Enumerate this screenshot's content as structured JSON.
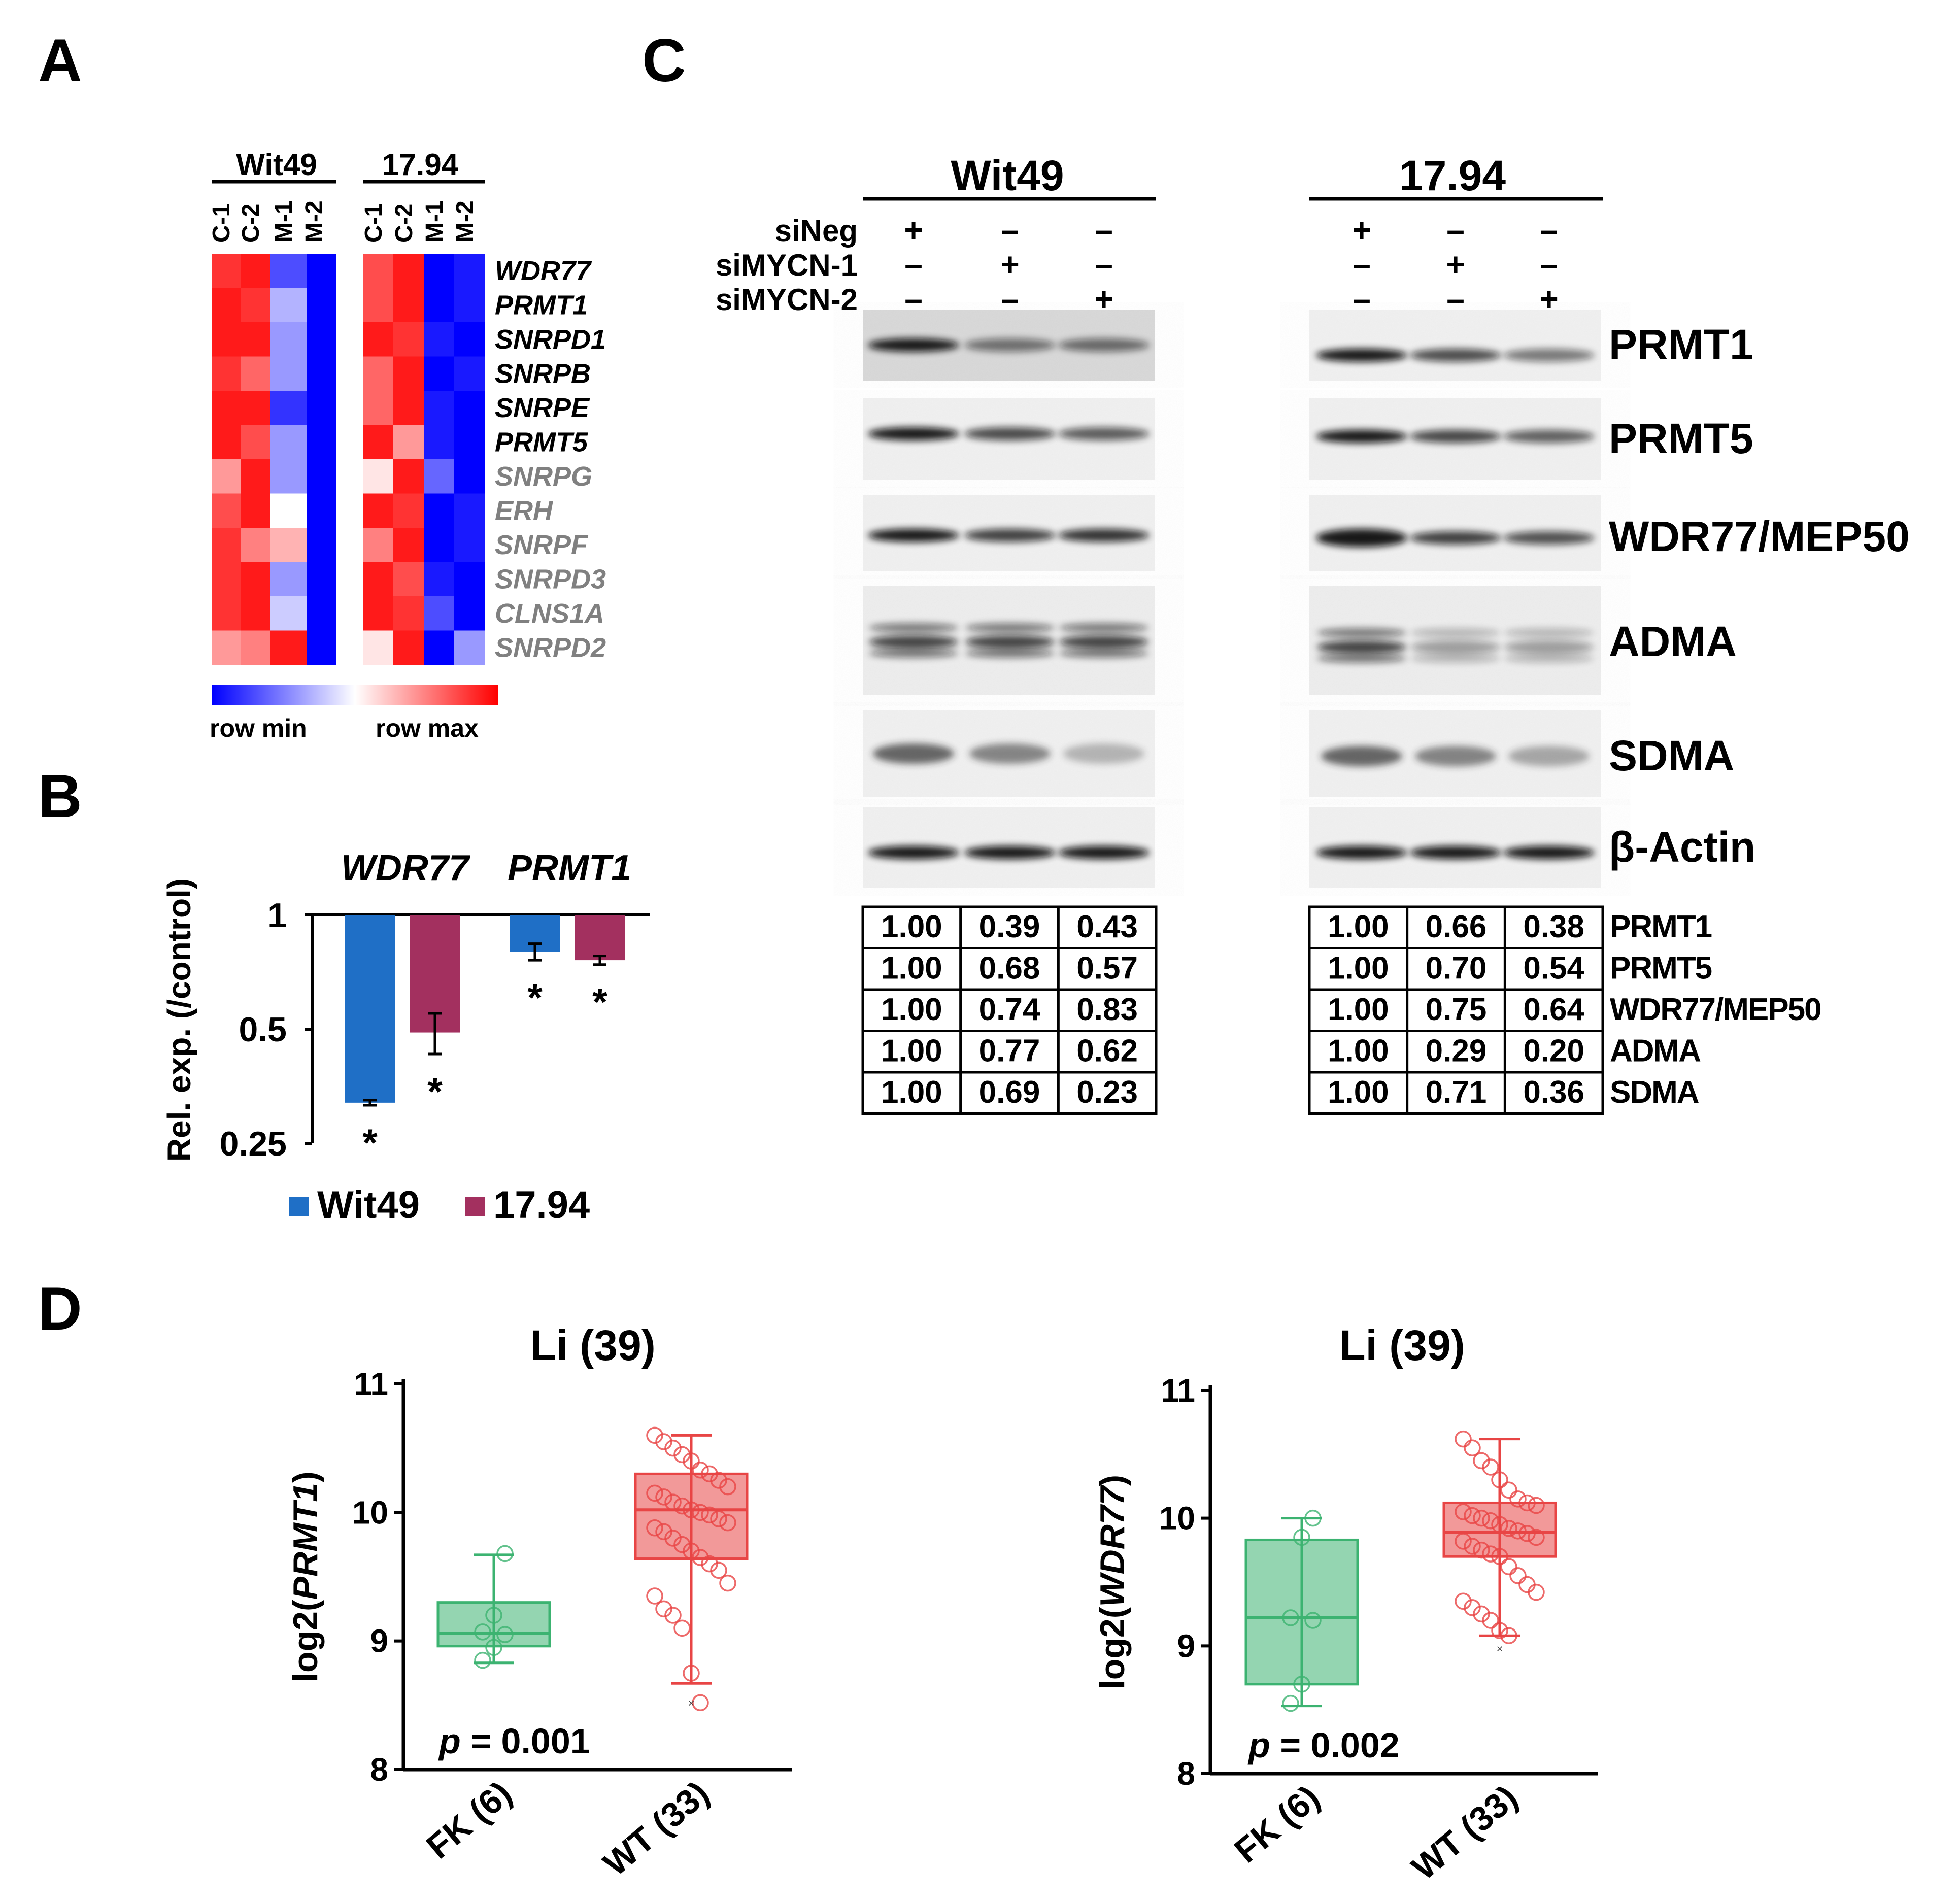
{
  "panel_labels": {
    "a": "A",
    "b": "B",
    "c": "C",
    "d": "D"
  },
  "panel_a": {
    "groups": [
      {
        "name": "Wit49",
        "samples": [
          "C-1",
          "C-2",
          "M-1",
          "M-2"
        ]
      },
      {
        "name": "17.94",
        "samples": [
          "C-1",
          "C-2",
          "M-1",
          "M-2"
        ]
      }
    ],
    "genes": [
      "WDR77",
      "PRMT1",
      "SNRPD1",
      "SNRPB",
      "SNRPE",
      "PRMT5",
      "SNRPG",
      "ERH",
      "SNRPF",
      "SNRPD3",
      "CLNS1A",
      "SNRPD2"
    ],
    "highlighted_genes": 6,
    "legend": {
      "min": "row min",
      "max": "row max"
    },
    "colors": {
      "low": "#0000ff",
      "mid": "#ffffff",
      "high": "#ff0000",
      "gene_bold": "#000000",
      "gene_gray": "#808080"
    },
    "chart_data": {
      "type": "heatmap",
      "columns": [
        "Wit49 C-1",
        "Wit49 C-2",
        "Wit49 M-1",
        "Wit49 M-2",
        "17.94 C-1",
        "17.94 C-2",
        "17.94 M-1",
        "17.94 M-2"
      ],
      "rows": [
        "WDR77",
        "PRMT1",
        "SNRPD1",
        "SNRPB",
        "SNRPE",
        "PRMT5",
        "SNRPG",
        "ERH",
        "SNRPF",
        "SNRPD3",
        "CLNS1A",
        "SNRPD2"
      ],
      "values": [
        [
          0.9,
          0.95,
          0.15,
          0.0,
          0.85,
          0.95,
          0.0,
          0.05
        ],
        [
          0.95,
          0.9,
          0.35,
          0.0,
          0.85,
          0.95,
          0.0,
          0.05
        ],
        [
          0.95,
          0.95,
          0.3,
          0.0,
          0.95,
          0.9,
          0.05,
          0.0
        ],
        [
          0.9,
          0.8,
          0.3,
          0.0,
          0.8,
          0.95,
          0.0,
          0.05
        ],
        [
          0.95,
          0.95,
          0.1,
          0.0,
          0.8,
          0.95,
          0.05,
          0.0
        ],
        [
          0.95,
          0.85,
          0.3,
          0.0,
          0.95,
          0.7,
          0.05,
          0.0
        ],
        [
          0.7,
          0.95,
          0.3,
          0.0,
          0.55,
          0.95,
          0.2,
          0.0
        ],
        [
          0.85,
          0.95,
          0.5,
          0.0,
          0.95,
          0.9,
          0.0,
          0.05
        ],
        [
          0.9,
          0.75,
          0.65,
          0.0,
          0.75,
          0.95,
          0.0,
          0.05
        ],
        [
          0.9,
          0.95,
          0.3,
          0.0,
          0.95,
          0.85,
          0.05,
          0.0
        ],
        [
          0.9,
          0.95,
          0.4,
          0.0,
          0.95,
          0.9,
          0.15,
          0.0
        ],
        [
          0.7,
          0.75,
          0.95,
          0.0,
          0.55,
          0.95,
          0.0,
          0.3
        ]
      ],
      "scale": "row-normalized, 0 = row min, 1 = row max"
    }
  },
  "panel_b": {
    "ylabel": "Rel. exp. (/control)",
    "yticks": [
      "1",
      "0.5",
      "0.25"
    ],
    "categories": [
      "WDR77",
      "PRMT1"
    ],
    "legend": [
      "Wit49",
      "17.94"
    ],
    "star": "*",
    "colors": {
      "Wit49": "#1f6fc6",
      "17.94": "#a3305f"
    },
    "chart_data": {
      "type": "bar",
      "categories": [
        "WDR77",
        "PRMT1"
      ],
      "series": [
        {
          "name": "Wit49",
          "values": [
            0.32,
            0.8
          ],
          "errors": [
            0.005,
            0.04
          ],
          "significant": [
            true,
            true
          ]
        },
        {
          "name": "17.94",
          "values": [
            0.49,
            0.76
          ],
          "errors": [
            0.06,
            0.02
          ],
          "significant": [
            true,
            true
          ]
        }
      ],
      "yscale": "log2",
      "ylim": [
        0.25,
        1
      ],
      "ylabel": "Rel. exp. (/control)",
      "legend_position": "bottom"
    }
  },
  "panel_c": {
    "blots": [
      {
        "title": "Wit49",
        "rows": [
          {
            "label": "siNeg",
            "marks": [
              "+",
              "–",
              "–"
            ]
          },
          {
            "label": "siMYCN-1",
            "marks": [
              "–",
              "+",
              "–"
            ]
          },
          {
            "label": "siMYCN-2",
            "marks": [
              "–",
              "–",
              "+"
            ]
          }
        ],
        "band_intensity": [
          [
            1.0,
            0.39,
            0.43
          ],
          [
            1.0,
            0.68,
            0.57
          ],
          [
            1.0,
            0.74,
            0.83
          ],
          [
            1.0,
            0.77,
            0.62
          ],
          [
            1.0,
            0.69,
            0.23
          ],
          [
            1.0,
            1.0,
            1.0
          ]
        ],
        "quant": [
          [
            "1.00",
            "0.39",
            "0.43"
          ],
          [
            "1.00",
            "0.68",
            "0.57"
          ],
          [
            "1.00",
            "0.74",
            "0.83"
          ],
          [
            "1.00",
            "0.77",
            "0.62"
          ],
          [
            "1.00",
            "0.69",
            "0.23"
          ]
        ]
      },
      {
        "title": "17.94",
        "rows": [
          {
            "label": "",
            "marks": [
              "+",
              "–",
              "–"
            ]
          },
          {
            "label": "",
            "marks": [
              "–",
              "+",
              "–"
            ]
          },
          {
            "label": "",
            "marks": [
              "–",
              "–",
              "+"
            ]
          }
        ],
        "band_intensity": [
          [
            1.0,
            0.66,
            0.38
          ],
          [
            1.0,
            0.7,
            0.54
          ],
          [
            1.0,
            0.75,
            0.64
          ],
          [
            1.0,
            0.29,
            0.2
          ],
          [
            1.0,
            0.71,
            0.36
          ],
          [
            1.0,
            1.0,
            1.0
          ]
        ],
        "quant": [
          [
            "1.00",
            "0.66",
            "0.38"
          ],
          [
            "1.00",
            "0.70",
            "0.54"
          ],
          [
            "1.00",
            "0.75",
            "0.64"
          ],
          [
            "1.00",
            "0.29",
            "0.20"
          ],
          [
            "1.00",
            "0.71",
            "0.36"
          ]
        ]
      }
    ],
    "proteins": [
      "PRMT1",
      "PRMT5",
      "WDR77/MEP50",
      "ADMA",
      "SDMA",
      "β-Actin"
    ],
    "quant_labels": [
      "PRMT1",
      "PRMT5",
      "WDR77/MEP50",
      "ADMA",
      "SDMA"
    ]
  },
  "panel_d": {
    "plots": [
      {
        "title": "Li (39)",
        "ylabel_prefix": "log2(",
        "ylabel_gene": "PRMT1",
        "ylabel_suffix": ")",
        "yticks": [
          "11",
          "10",
          "9",
          "8"
        ],
        "categories": [
          "FK (6)",
          "WT (33)"
        ],
        "p_label": "p",
        "p_value": " = 0.001",
        "chart_data": {
          "type": "box",
          "ylim": [
            8,
            11
          ],
          "groups": [
            {
              "name": "FK (6)",
              "min": 8.83,
              "q1": 8.96,
              "median": 9.06,
              "q3": 9.3,
              "max": 9.67,
              "points": [
                8.85,
                8.95,
                9.05,
                9.07,
                9.2,
                9.68
              ]
            },
            {
              "name": "WT (33)",
              "min": 8.67,
              "q1": 9.64,
              "median": 10.02,
              "q3": 10.3,
              "max": 10.6,
              "outlier": 8.52,
              "points": [
                10.6,
                10.55,
                10.5,
                10.45,
                10.4,
                10.33,
                10.3,
                10.25,
                10.2,
                10.15,
                10.12,
                10.08,
                10.05,
                10.02,
                10.0,
                9.98,
                9.95,
                9.92,
                9.88,
                9.85,
                9.8,
                9.75,
                9.7,
                9.65,
                9.6,
                9.55,
                9.45,
                9.35,
                9.25,
                9.2,
                9.1,
                8.75,
                8.52
              ]
            }
          ]
        }
      },
      {
        "title": "Li (39)",
        "ylabel_prefix": "log2(",
        "ylabel_gene": "WDR77",
        "ylabel_suffix": ")",
        "yticks": [
          "11",
          "10",
          "9",
          "8"
        ],
        "categories": [
          "FK (6)",
          "WT (33)"
        ],
        "p_label": "p",
        "p_value": " = 0.002",
        "chart_data": {
          "type": "box",
          "ylim": [
            8,
            11
          ],
          "groups": [
            {
              "name": "FK (6)",
              "min": 8.53,
              "q1": 8.7,
              "median": 9.22,
              "q3": 9.83,
              "max": 10.0,
              "points": [
                8.55,
                8.7,
                9.2,
                9.22,
                9.85,
                10.0
              ]
            },
            {
              "name": "WT (33)",
              "min": 9.08,
              "q1": 9.7,
              "median": 9.89,
              "q3": 10.12,
              "max": 10.62,
              "outlier": 8.98,
              "points": [
                10.62,
                10.55,
                10.45,
                10.4,
                10.3,
                10.22,
                10.15,
                10.12,
                10.1,
                10.05,
                10.02,
                10.0,
                9.98,
                9.95,
                9.92,
                9.9,
                9.88,
                9.85,
                9.82,
                9.78,
                9.75,
                9.72,
                9.7,
                9.62,
                9.55,
                9.48,
                9.42,
                9.35,
                9.3,
                9.25,
                9.2,
                9.12,
                9.08
              ]
            }
          ]
        }
      }
    ],
    "colors": {
      "FK": "#3cb371",
      "WT": "#e84545"
    }
  }
}
